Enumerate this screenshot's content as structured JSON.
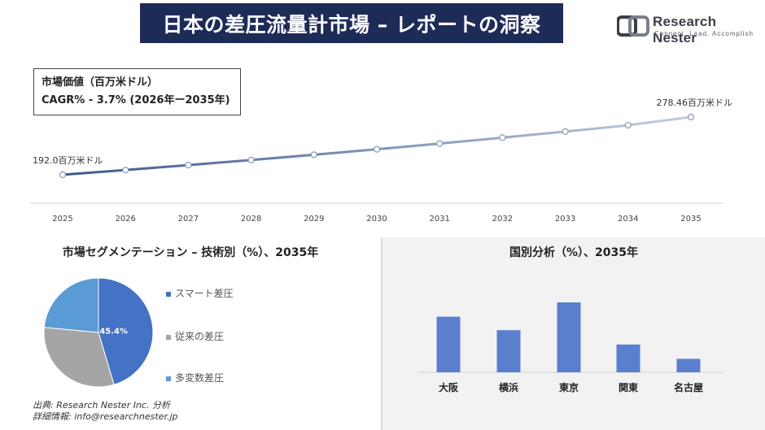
{
  "header": {
    "title": "日本の差圧流量計市場 – レポートの洞察",
    "logo_name": "Research Nester",
    "logo_tagline": "Connect. Lead. Accomplish"
  },
  "market_info": {
    "line1": "市場価値（百万米ドル）",
    "line2": "CAGR% - 3.7% (2026年ー2035年)"
  },
  "colors": {
    "title_bg": "#1d2b57",
    "line_start": "#3d5a8e",
    "line_end": "#c3cde0",
    "pie_smart": "#4472c4",
    "pie_conventional": "#a5a5a5",
    "pie_multivariable": "#5b9bd5",
    "bar": "#5b7fcf"
  },
  "segment_section": {
    "title": "市場セグメンテーション – 技術別（%）、2035年"
  },
  "country_section": {
    "title": "国別分析（%）、2035年"
  },
  "source": {
    "line1": "出典: Research Nester Inc. 分析",
    "line2": "詳細情報: info@researchnester.jp"
  },
  "chart_data": [
    {
      "type": "line",
      "x": [
        "2025",
        "2026",
        "2027",
        "2028",
        "2029",
        "2030",
        "2031",
        "2032",
        "2033",
        "2034",
        "2035"
      ],
      "series": [
        {
          "values": [
            192.0,
            199.1,
            206.5,
            214.1,
            222.0,
            230.2,
            238.7,
            247.6,
            256.7,
            266.2,
            278.46
          ]
        }
      ],
      "annotations": {
        "start": "192.0百万米ドル",
        "end": "278.46百万米ドル"
      },
      "grid": false
    },
    {
      "type": "pie",
      "labels": [
        "スマート差圧",
        "従来の差圧",
        "多変数差圧"
      ],
      "values": [
        45.4,
        31.1,
        23.5
      ],
      "data_labels": [
        "45.4%",
        "",
        ""
      ],
      "legend_position": "right"
    },
    {
      "type": "bar",
      "categories": [
        "大阪",
        "横浜",
        "東京",
        "関東",
        "名古屋"
      ],
      "values": [
        62,
        47,
        78,
        31,
        15
      ],
      "grid": false
    }
  ]
}
